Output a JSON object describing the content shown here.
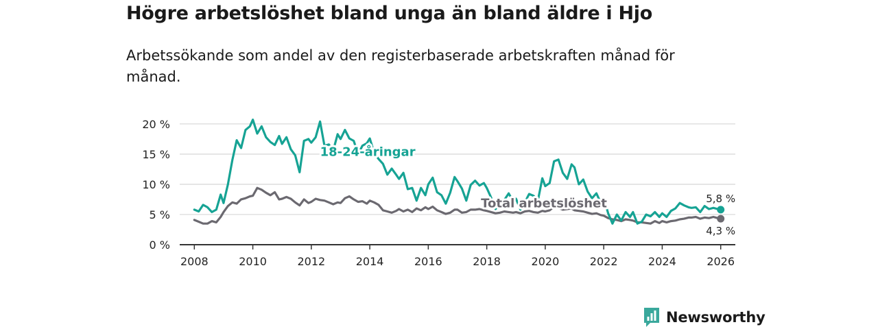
{
  "header": {
    "title": "Högre arbetslöshet bland unga än bland äldre i Hjo",
    "subtitle": "Arbetssökande som andel av den registerbaserade arbetskraften månad för månad."
  },
  "brand": {
    "name": "Newsworthy",
    "color": "#3aa89c",
    "icon": "bar-chart-logo-icon"
  },
  "colors": {
    "youth": "#16a394",
    "total": "#6b6970",
    "grid": "#d6d6d6",
    "axis": "#333333"
  },
  "chart_data": {
    "type": "line",
    "title": "Högre arbetslöshet bland unga än bland äldre i Hjo",
    "subtitle": "Arbetssökande som andel av den registerbaserade arbetskraften månad för månad.",
    "xlabel": "",
    "ylabel": "",
    "xlim": [
      2007.5,
      2026.5
    ],
    "ylim": [
      0,
      21
    ],
    "x_ticks": [
      2008,
      2010,
      2012,
      2014,
      2016,
      2018,
      2020,
      2022,
      2024,
      2026
    ],
    "x_tick_labels": [
      "2008",
      "2010",
      "2012",
      "2014",
      "2016",
      "2018",
      "2020",
      "2022",
      "2024",
      "2026"
    ],
    "y_ticks": [
      0,
      5,
      10,
      15,
      20
    ],
    "y_tick_labels": [
      "0 %",
      "5 %",
      "10 %",
      "15 %",
      "20 %"
    ],
    "grid": true,
    "series": [
      {
        "name": "18-24-åringar",
        "color": "#16a394",
        "label_at": [
          2012.3,
          14.7
        ],
        "end_label": "5,8 %",
        "points": [
          [
            2008.0,
            5.8
          ],
          [
            2008.15,
            5.5
          ],
          [
            2008.3,
            6.6
          ],
          [
            2008.45,
            6.2
          ],
          [
            2008.6,
            5.4
          ],
          [
            2008.75,
            5.8
          ],
          [
            2008.9,
            8.3
          ],
          [
            2009.0,
            6.9
          ],
          [
            2009.15,
            10.0
          ],
          [
            2009.3,
            14.0
          ],
          [
            2009.45,
            17.3
          ],
          [
            2009.6,
            16.0
          ],
          [
            2009.75,
            19.0
          ],
          [
            2009.9,
            19.6
          ],
          [
            2010.0,
            20.7
          ],
          [
            2010.15,
            18.4
          ],
          [
            2010.3,
            19.6
          ],
          [
            2010.45,
            17.8
          ],
          [
            2010.6,
            17.0
          ],
          [
            2010.75,
            16.5
          ],
          [
            2010.9,
            18.0
          ],
          [
            2011.0,
            16.7
          ],
          [
            2011.15,
            17.8
          ],
          [
            2011.3,
            15.8
          ],
          [
            2011.45,
            14.8
          ],
          [
            2011.6,
            12.0
          ],
          [
            2011.75,
            17.2
          ],
          [
            2011.9,
            17.5
          ],
          [
            2012.0,
            16.9
          ],
          [
            2012.15,
            17.8
          ],
          [
            2012.3,
            20.4
          ],
          [
            2012.45,
            16.4
          ],
          [
            2012.6,
            16.6
          ],
          [
            2012.75,
            15.6
          ],
          [
            2012.9,
            18.3
          ],
          [
            2013.0,
            17.5
          ],
          [
            2013.15,
            19.0
          ],
          [
            2013.3,
            17.6
          ],
          [
            2013.45,
            17.2
          ],
          [
            2013.6,
            15.0
          ],
          [
            2013.75,
            16.4
          ],
          [
            2013.9,
            16.8
          ],
          [
            2014.0,
            17.6
          ],
          [
            2014.15,
            15.2
          ],
          [
            2014.3,
            14.2
          ],
          [
            2014.45,
            13.4
          ],
          [
            2014.6,
            11.6
          ],
          [
            2014.75,
            12.6
          ],
          [
            2014.9,
            11.6
          ],
          [
            2015.0,
            10.9
          ],
          [
            2015.15,
            11.9
          ],
          [
            2015.3,
            9.2
          ],
          [
            2015.45,
            9.4
          ],
          [
            2015.6,
            7.3
          ],
          [
            2015.75,
            9.4
          ],
          [
            2015.9,
            8.2
          ],
          [
            2016.0,
            10.0
          ],
          [
            2016.15,
            11.1
          ],
          [
            2016.3,
            8.7
          ],
          [
            2016.45,
            8.2
          ],
          [
            2016.6,
            6.8
          ],
          [
            2016.75,
            8.6
          ],
          [
            2016.9,
            11.2
          ],
          [
            2017.0,
            10.5
          ],
          [
            2017.15,
            9.3
          ],
          [
            2017.3,
            7.3
          ],
          [
            2017.45,
            9.9
          ],
          [
            2017.6,
            10.6
          ],
          [
            2017.75,
            9.8
          ],
          [
            2017.9,
            10.2
          ],
          [
            2018.0,
            9.4
          ],
          [
            2018.15,
            7.8
          ],
          [
            2018.3,
            5.9
          ],
          [
            2018.45,
            6.6
          ],
          [
            2018.6,
            7.4
          ],
          [
            2018.75,
            8.5
          ],
          [
            2018.9,
            7.2
          ],
          [
            2019.0,
            7.6
          ],
          [
            2019.15,
            5.8
          ],
          [
            2019.3,
            7.0
          ],
          [
            2019.45,
            8.4
          ],
          [
            2019.6,
            8.1
          ],
          [
            2019.75,
            7.3
          ],
          [
            2019.9,
            11.0
          ],
          [
            2020.0,
            9.7
          ],
          [
            2020.15,
            10.2
          ],
          [
            2020.3,
            13.8
          ],
          [
            2020.45,
            14.1
          ],
          [
            2020.6,
            11.9
          ],
          [
            2020.75,
            10.9
          ],
          [
            2020.9,
            13.3
          ],
          [
            2021.0,
            12.8
          ],
          [
            2021.15,
            10.0
          ],
          [
            2021.3,
            10.8
          ],
          [
            2021.45,
            8.8
          ],
          [
            2021.6,
            7.7
          ],
          [
            2021.75,
            8.5
          ],
          [
            2021.9,
            6.9
          ],
          [
            2022.0,
            7.7
          ],
          [
            2022.15,
            5.2
          ],
          [
            2022.3,
            3.5
          ],
          [
            2022.45,
            5.0
          ],
          [
            2022.6,
            4.0
          ],
          [
            2022.75,
            5.4
          ],
          [
            2022.9,
            4.6
          ],
          [
            2023.0,
            5.4
          ],
          [
            2023.15,
            3.5
          ],
          [
            2023.3,
            3.8
          ],
          [
            2023.45,
            5.0
          ],
          [
            2023.6,
            4.7
          ],
          [
            2023.75,
            5.4
          ],
          [
            2023.9,
            4.6
          ],
          [
            2024.0,
            5.2
          ],
          [
            2024.15,
            4.6
          ],
          [
            2024.3,
            5.6
          ],
          [
            2024.45,
            6.0
          ],
          [
            2024.6,
            6.9
          ],
          [
            2024.75,
            6.5
          ],
          [
            2024.9,
            6.2
          ],
          [
            2025.0,
            6.1
          ],
          [
            2025.15,
            6.2
          ],
          [
            2025.3,
            5.4
          ],
          [
            2025.45,
            6.4
          ],
          [
            2025.6,
            5.9
          ],
          [
            2025.75,
            6.1
          ],
          [
            2025.9,
            5.9
          ],
          [
            2026.0,
            5.8
          ]
        ]
      },
      {
        "name": "Total arbetslöshet",
        "color": "#6b6970",
        "label_at": [
          2017.8,
          6.2
        ],
        "end_label": "4,3 %",
        "points": [
          [
            2008.0,
            4.1
          ],
          [
            2008.15,
            3.8
          ],
          [
            2008.3,
            3.5
          ],
          [
            2008.45,
            3.5
          ],
          [
            2008.6,
            3.9
          ],
          [
            2008.75,
            3.7
          ],
          [
            2008.9,
            4.6
          ],
          [
            2009.0,
            5.4
          ],
          [
            2009.15,
            6.4
          ],
          [
            2009.3,
            7.0
          ],
          [
            2009.45,
            6.8
          ],
          [
            2009.6,
            7.5
          ],
          [
            2009.75,
            7.7
          ],
          [
            2009.9,
            8.0
          ],
          [
            2010.0,
            8.1
          ],
          [
            2010.15,
            9.4
          ],
          [
            2010.3,
            9.1
          ],
          [
            2010.45,
            8.6
          ],
          [
            2010.6,
            8.2
          ],
          [
            2010.75,
            8.7
          ],
          [
            2010.9,
            7.5
          ],
          [
            2011.0,
            7.6
          ],
          [
            2011.15,
            7.9
          ],
          [
            2011.3,
            7.6
          ],
          [
            2011.45,
            7.0
          ],
          [
            2011.6,
            6.5
          ],
          [
            2011.75,
            7.5
          ],
          [
            2011.9,
            6.9
          ],
          [
            2012.0,
            7.1
          ],
          [
            2012.15,
            7.6
          ],
          [
            2012.3,
            7.4
          ],
          [
            2012.45,
            7.3
          ],
          [
            2012.6,
            7.0
          ],
          [
            2012.75,
            6.7
          ],
          [
            2012.9,
            7.0
          ],
          [
            2013.0,
            6.9
          ],
          [
            2013.15,
            7.7
          ],
          [
            2013.3,
            8.0
          ],
          [
            2013.45,
            7.5
          ],
          [
            2013.6,
            7.1
          ],
          [
            2013.75,
            7.2
          ],
          [
            2013.9,
            6.8
          ],
          [
            2014.0,
            7.3
          ],
          [
            2014.15,
            7.0
          ],
          [
            2014.3,
            6.6
          ],
          [
            2014.45,
            5.7
          ],
          [
            2014.6,
            5.5
          ],
          [
            2014.75,
            5.3
          ],
          [
            2014.9,
            5.6
          ],
          [
            2015.0,
            5.9
          ],
          [
            2015.15,
            5.5
          ],
          [
            2015.3,
            5.8
          ],
          [
            2015.45,
            5.4
          ],
          [
            2015.6,
            6.0
          ],
          [
            2015.75,
            5.7
          ],
          [
            2015.9,
            6.2
          ],
          [
            2016.0,
            5.9
          ],
          [
            2016.15,
            6.3
          ],
          [
            2016.3,
            5.7
          ],
          [
            2016.45,
            5.4
          ],
          [
            2016.6,
            5.1
          ],
          [
            2016.75,
            5.3
          ],
          [
            2016.9,
            5.8
          ],
          [
            2017.0,
            5.8
          ],
          [
            2017.15,
            5.3
          ],
          [
            2017.3,
            5.4
          ],
          [
            2017.45,
            5.8
          ],
          [
            2017.6,
            5.8
          ],
          [
            2017.75,
            5.9
          ],
          [
            2017.9,
            5.7
          ],
          [
            2018.0,
            5.6
          ],
          [
            2018.15,
            5.4
          ],
          [
            2018.3,
            5.2
          ],
          [
            2018.45,
            5.3
          ],
          [
            2018.6,
            5.5
          ],
          [
            2018.75,
            5.4
          ],
          [
            2018.9,
            5.3
          ],
          [
            2019.0,
            5.4
          ],
          [
            2019.15,
            5.2
          ],
          [
            2019.3,
            5.5
          ],
          [
            2019.45,
            5.6
          ],
          [
            2019.6,
            5.4
          ],
          [
            2019.75,
            5.3
          ],
          [
            2019.9,
            5.6
          ],
          [
            2020.0,
            5.5
          ],
          [
            2020.15,
            5.7
          ],
          [
            2020.3,
            6.3
          ],
          [
            2020.45,
            6.1
          ],
          [
            2020.6,
            5.8
          ],
          [
            2020.75,
            5.9
          ],
          [
            2020.9,
            6.0
          ],
          [
            2021.0,
            5.7
          ],
          [
            2021.15,
            5.6
          ],
          [
            2021.3,
            5.5
          ],
          [
            2021.45,
            5.3
          ],
          [
            2021.6,
            5.1
          ],
          [
            2021.75,
            5.2
          ],
          [
            2021.9,
            4.9
          ],
          [
            2022.0,
            4.8
          ],
          [
            2022.15,
            4.4
          ],
          [
            2022.3,
            4.2
          ],
          [
            2022.45,
            4.1
          ],
          [
            2022.6,
            3.9
          ],
          [
            2022.75,
            4.2
          ],
          [
            2022.9,
            4.1
          ],
          [
            2023.0,
            4.0
          ],
          [
            2023.15,
            3.7
          ],
          [
            2023.3,
            3.7
          ],
          [
            2023.45,
            3.6
          ],
          [
            2023.6,
            3.5
          ],
          [
            2023.75,
            3.9
          ],
          [
            2023.9,
            3.6
          ],
          [
            2024.0,
            3.9
          ],
          [
            2024.15,
            3.7
          ],
          [
            2024.3,
            3.9
          ],
          [
            2024.45,
            4.0
          ],
          [
            2024.6,
            4.2
          ],
          [
            2024.75,
            4.3
          ],
          [
            2024.9,
            4.5
          ],
          [
            2025.0,
            4.5
          ],
          [
            2025.15,
            4.6
          ],
          [
            2025.3,
            4.3
          ],
          [
            2025.45,
            4.5
          ],
          [
            2025.6,
            4.4
          ],
          [
            2025.75,
            4.6
          ],
          [
            2025.9,
            4.4
          ],
          [
            2026.0,
            4.3
          ]
        ]
      }
    ]
  }
}
